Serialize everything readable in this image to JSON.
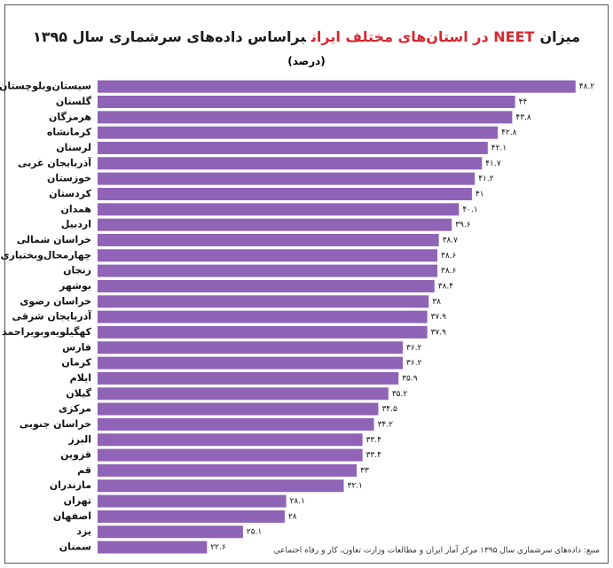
{
  "chart_data": {
    "type": "bar",
    "orientation": "horizontal",
    "title": [
      "میزان",
      "NEET در استان‌های مختلف ایران",
      "براساس داده‌های سرشماری سال ۱۳۹۵"
    ],
    "title_colors": [
      "#1a1a1a",
      "#d7262e",
      "#1a1a1a"
    ],
    "subtitle": "(درصد)",
    "source": "منبع: داده‌های سرشماری سال ۱۳۹۵ مرکز آمار ایران و مطالعات وزارت تعاون، کار و رفاه اجتماعی",
    "categories": [
      "سیستان‌وبلوچستان",
      "گلستان",
      "هرمزگان",
      "کرمانشاه",
      "لرستان",
      "آذربایجان غربی",
      "خوزستان",
      "کردستان",
      "همدان",
      "اردبیل",
      "خراسان شمالی",
      "چهارمحال‌وبختیاری",
      "زنجان",
      "بوشهر",
      "خراسان رضوی",
      "آذربایجان شرقی",
      "کهگیلویه‌وبویراحمد",
      "فارس",
      "کرمان",
      "ایلام",
      "گیلان",
      "مرکزی",
      "خراسان جنوبی",
      "البرز",
      "قزوین",
      "قم",
      "مازندران",
      "تهران",
      "اصفهان",
      "یزد",
      "سمنان"
    ],
    "values": [
      48.2,
      44,
      43.8,
      42.8,
      42.1,
      41.7,
      41.2,
      41,
      40.1,
      39.6,
      38.7,
      38.6,
      38.6,
      38.4,
      38,
      37.9,
      37.9,
      36.2,
      36.2,
      35.9,
      35.2,
      34.5,
      34.2,
      33.4,
      33.4,
      33,
      32.1,
      28.1,
      28,
      25.1,
      22.6
    ],
    "value_labels": [
      "۴۸.۲",
      "۴۴",
      "۴۳.۸",
      "۴۲.۸",
      "۴۲.۱",
      "۴۱.۷",
      "۴۱.۲",
      "۴۱",
      "۴۰.۱",
      "۳۹.۶",
      "۳۸.۷",
      "۳۸.۶",
      "۳۸.۶",
      "۳۸.۴",
      "۳۸",
      "۳۷.۹",
      "۳۷.۹",
      "۳۶.۲",
      "۳۶.۲",
      "۳۵.۹",
      "۳۵.۲",
      "۳۴.۵",
      "۳۴.۲",
      "۳۳.۴",
      "۳۳.۴",
      "۳۳",
      "۳۲.۱",
      "۲۸.۱",
      "۲۸",
      "۲۵.۱",
      "۲۲.۶"
    ],
    "color": "#8f63b6",
    "xlim": [
      15,
      50
    ]
  }
}
